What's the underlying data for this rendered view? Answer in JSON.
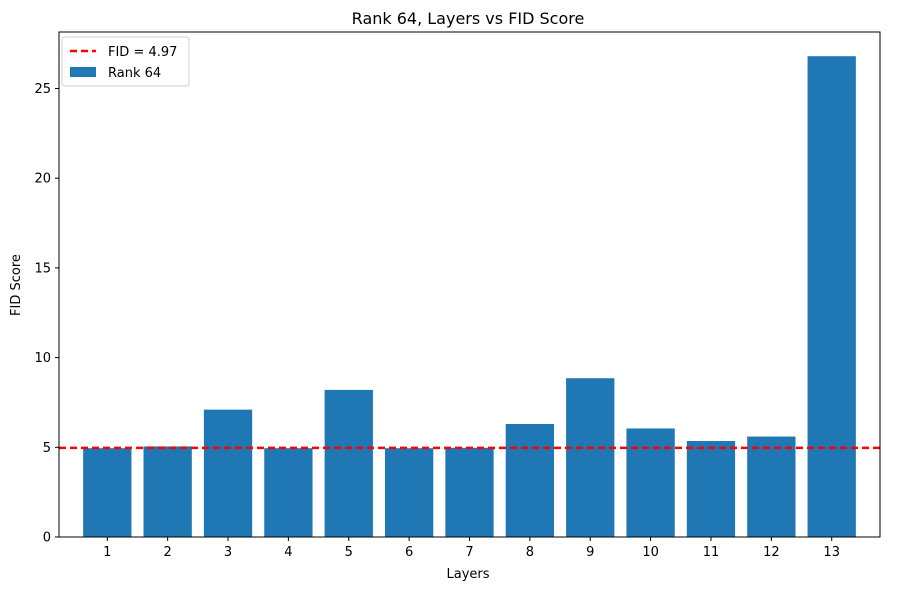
{
  "chart_data": {
    "type": "bar",
    "title": "Rank 64, Layers vs FID Score",
    "xlabel": "Layers",
    "ylabel": "FID Score",
    "categories": [
      "1",
      "2",
      "3",
      "4",
      "5",
      "6",
      "7",
      "8",
      "9",
      "10",
      "11",
      "12",
      "13"
    ],
    "series": [
      {
        "name": "Rank 64",
        "color": "#1f77b4",
        "values": [
          4.95,
          5.05,
          7.1,
          4.95,
          8.2,
          4.95,
          4.97,
          6.3,
          8.85,
          6.05,
          5.35,
          5.6,
          26.8
        ]
      }
    ],
    "reference_line": {
      "label": "FID = 4.97",
      "value": 4.97,
      "color": "#ff0000",
      "style": "dashed"
    },
    "ylim": [
      0,
      28.15
    ],
    "yticks": [
      0,
      5,
      10,
      15,
      20,
      25
    ],
    "grid": false,
    "legend_position": "top-left"
  }
}
